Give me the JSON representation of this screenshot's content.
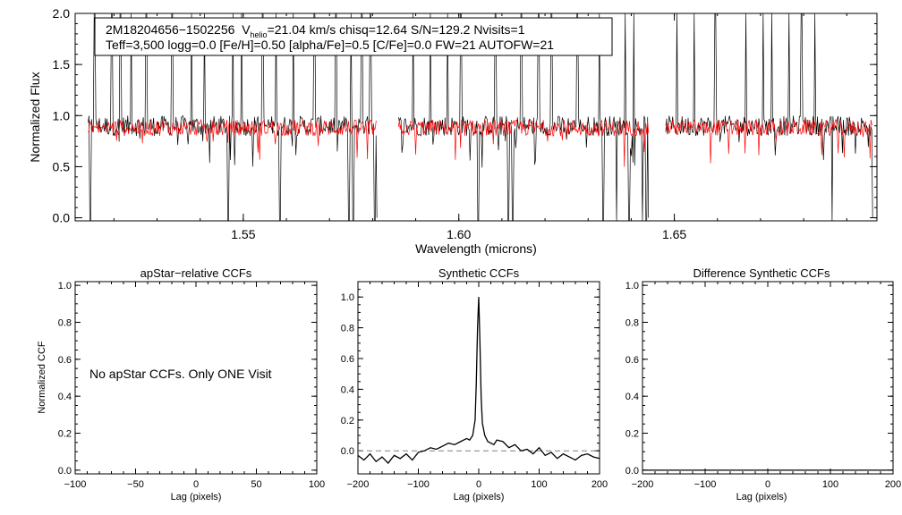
{
  "info_box": {
    "line1_id": "2M18204656−1502256",
    "line1_v": "V",
    "line1_sub": "helio",
    "line1_rest": "=21.04 km/s  chisq=12.64  S/N=129.2  Nvisits=1",
    "line2": "Teff=3,500 logg=0.0 [Fe/H]=0.50 [alpha/Fe]=0.5 [C/Fe]=0.0 FW=21 AUTOFW=21"
  },
  "colors": {
    "observed": "#000000",
    "model": "#ff0000",
    "zero_line": "#808080"
  },
  "chart_data": [
    {
      "type": "line",
      "xlabel": "Wavelength (microns)",
      "ylabel": "Normalized Flux",
      "xlim": [
        1.511,
        1.697
      ],
      "ylim": [
        -0.03,
        2.0
      ],
      "xticks": [
        1.55,
        1.6,
        1.65
      ],
      "xtick_labels": [
        "1.55",
        "1.60",
        "1.65"
      ],
      "yticks": [
        0.0,
        0.5,
        1.0,
        1.5,
        2.0
      ],
      "ytick_labels": [
        "0.0",
        "0.5",
        "1.0",
        "1.5",
        "2.0"
      ],
      "detector_ranges": [
        [
          1.514,
          1.581
        ],
        [
          1.586,
          1.644
        ],
        [
          1.648,
          1.696
        ]
      ],
      "series": [
        {
          "color": "#000000",
          "continuum": 0.9,
          "scatter": 0.1
        },
        {
          "color": "#ff0000",
          "continuum": 0.88,
          "scatter": 0.08
        }
      ],
      "emission_spikes": [
        1.5155,
        1.5195,
        1.5215,
        1.524,
        1.5275,
        1.5335,
        1.538,
        1.541,
        1.5475,
        1.5495,
        1.5545,
        1.5575,
        1.5615,
        1.5665,
        1.5715,
        1.575,
        1.5775,
        1.5795,
        1.5895,
        1.5935,
        1.5975,
        1.6005,
        1.6085,
        1.6145,
        1.6185,
        1.6215,
        1.6275,
        1.6325,
        1.6385,
        1.6405,
        1.6435,
        1.6505,
        1.6545,
        1.6595,
        1.6665,
        1.6705,
        1.6725,
        1.6765,
        1.6795,
        1.6825
      ],
      "absorption_dips": [
        1.5145,
        1.5465,
        1.5585,
        1.5745,
        1.5755,
        1.5805,
        1.5835,
        1.5855,
        1.6045,
        1.6115,
        1.6125,
        1.6335,
        1.6365,
        1.6395,
        1.6425,
        1.6435,
        1.6475,
        1.6865
      ]
    },
    {
      "type": "line",
      "title": "apStar−relative CCFs",
      "xlabel": "Lag (pixels)",
      "ylabel": "Normalized CCF",
      "xlim": [
        -100,
        100
      ],
      "ylim": [
        -0.02,
        1.02
      ],
      "xticks": [
        -100,
        -50,
        0,
        50,
        100
      ],
      "xtick_labels": [
        "−100",
        "−50",
        "0",
        "50",
        "100"
      ],
      "yticks": [
        0.0,
        0.2,
        0.4,
        0.6,
        0.8,
        1.0
      ],
      "ytick_labels": [
        "0.0",
        "0.2",
        "0.4",
        "0.6",
        "0.8",
        "1.0"
      ],
      "annotation": "No apStar CCFs.  Only ONE Visit",
      "series": []
    },
    {
      "type": "line",
      "title": "Synthetic CCFs",
      "xlabel": "Lag (pixels)",
      "xlim": [
        -200,
        200
      ],
      "ylim": [
        -0.15,
        1.1
      ],
      "xticks": [
        -200,
        -100,
        0,
        100,
        200
      ],
      "xtick_labels": [
        "−200",
        "−100",
        "0",
        "100",
        "200"
      ],
      "yticks": [
        0.0,
        0.2,
        0.4,
        0.6,
        0.8,
        1.0
      ],
      "ytick_labels": [
        "0.0",
        "0.2",
        "0.4",
        "0.6",
        "0.8",
        "1.0"
      ],
      "zero_line": 0.0,
      "series": [
        {
          "color": "#000000",
          "x": [
            -200,
            -190,
            -180,
            -170,
            -160,
            -150,
            -140,
            -130,
            -120,
            -110,
            -100,
            -90,
            -80,
            -70,
            -60,
            -50,
            -40,
            -30,
            -20,
            -15,
            -10,
            -6,
            -4,
            -2,
            0,
            2,
            4,
            6,
            10,
            15,
            20,
            25,
            30,
            40,
            50,
            60,
            70,
            80,
            90,
            100,
            110,
            120,
            130,
            140,
            150,
            160,
            170,
            180,
            190,
            200
          ],
          "y": [
            -0.03,
            -0.06,
            -0.02,
            -0.07,
            -0.04,
            -0.08,
            -0.03,
            -0.05,
            -0.02,
            -0.06,
            -0.01,
            0.0,
            0.02,
            0.01,
            0.03,
            0.05,
            0.04,
            0.06,
            0.08,
            0.07,
            0.1,
            0.2,
            0.45,
            0.8,
            1.0,
            0.7,
            0.35,
            0.18,
            0.1,
            0.06,
            0.05,
            0.04,
            0.07,
            0.06,
            0.02,
            0.04,
            0.0,
            0.01,
            -0.02,
            0.02,
            -0.03,
            -0.01,
            -0.05,
            -0.02,
            -0.04,
            -0.06,
            -0.03,
            -0.02,
            -0.04,
            -0.05
          ]
        }
      ]
    },
    {
      "type": "line",
      "title": "Difference Synthetic CCFs",
      "xlabel": "Lag (pixels)",
      "xlim": [
        -200,
        200
      ],
      "ylim": [
        -0.02,
        1.02
      ],
      "xticks": [
        -200,
        -100,
        0,
        100,
        200
      ],
      "xtick_labels": [
        "−200",
        "−100",
        "0",
        "100",
        "200"
      ],
      "yticks": [
        0.0,
        0.2,
        0.4,
        0.6,
        0.8,
        1.0
      ],
      "ytick_labels": [
        "0.0",
        "0.2",
        "0.4",
        "0.6",
        "0.8",
        "1.0"
      ],
      "series": [
        {
          "color": "#000000",
          "x": [
            -200,
            200
          ],
          "y": [
            0.0,
            0.0
          ]
        }
      ]
    }
  ]
}
